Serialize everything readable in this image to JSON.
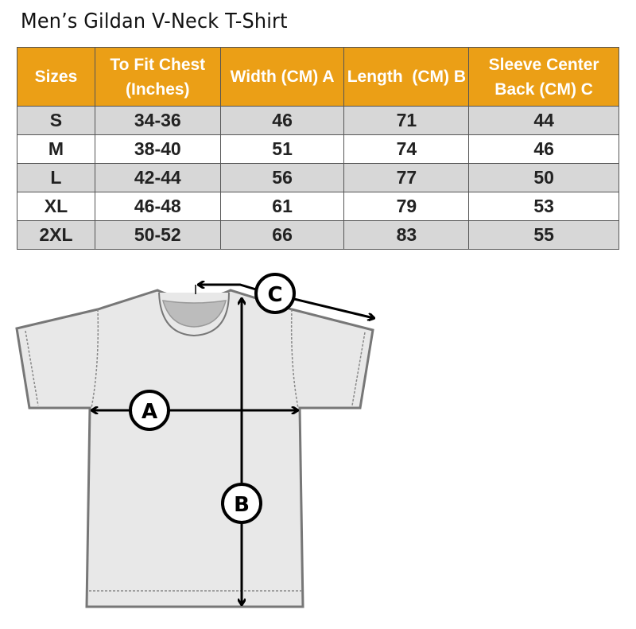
{
  "title": "Men’s Gildan V-Neck T-Shirt",
  "table": {
    "headers": [
      "Sizes",
      "To Fit Chest (Inches)",
      "Width (CM) A",
      "Length  (CM) B",
      "Sleeve Center Back (CM) C"
    ],
    "rows": [
      [
        "S",
        "34-36",
        "46",
        "71",
        "44"
      ],
      [
        "M",
        "38-40",
        "51",
        "74",
        "46"
      ],
      [
        "L",
        "42-44",
        "56",
        "77",
        "50"
      ],
      [
        "XL",
        "46-48",
        "61",
        "79",
        "53"
      ],
      [
        "2XL",
        "50-52",
        "66",
        "83",
        "55"
      ]
    ]
  },
  "diagram": {
    "labels": {
      "a": "A",
      "b": "B",
      "c": "C"
    }
  },
  "colors": {
    "header": "#eb9f16",
    "row_shade": "#d7d7d7"
  }
}
